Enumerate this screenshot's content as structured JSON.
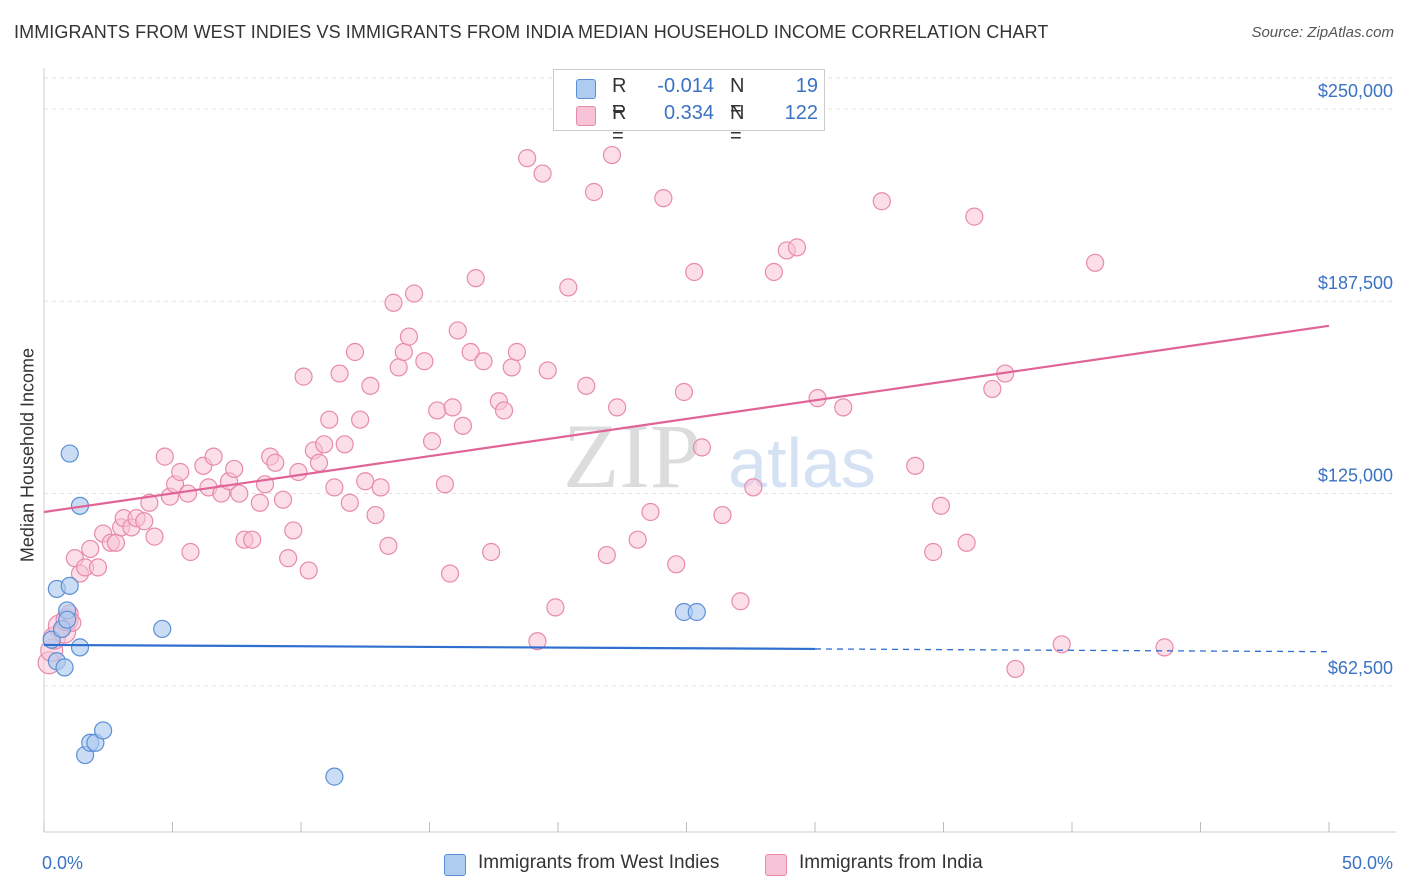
{
  "title": "IMMIGRANTS FROM WEST INDIES VS IMMIGRANTS FROM INDIA MEDIAN HOUSEHOLD INCOME CORRELATION CHART",
  "source": "Source: ZipAtlas.com",
  "watermark": {
    "zip": "ZIP",
    "atlas": "atlas"
  },
  "legend": {
    "rows": [
      {
        "r_label": "R =",
        "r_value": "-0.014",
        "n_label": "N =",
        "n_value": "19"
      },
      {
        "r_label": "R =",
        "r_value": "0.334",
        "n_label": "N =",
        "n_value": "122"
      }
    ]
  },
  "bottom_legend": {
    "west_indies": "Immigrants from West Indies",
    "india": "Immigrants from India"
  },
  "colors": {
    "west_indies_fill": "#aecbf0",
    "west_indies_stroke": "#5b8fd6",
    "west_indies_line": "#2f6fcf",
    "india_fill": "#f7c3d6",
    "india_stroke": "#e88aac",
    "india_line": "#e06496",
    "tick_label": "#3a72c4"
  },
  "chart_data": {
    "type": "scatter",
    "title": "IMMIGRANTS FROM WEST INDIES VS IMMIGRANTS FROM INDIA MEDIAN HOUSEHOLD INCOME CORRELATION CHART",
    "xlabel": "",
    "ylabel": "Median Household Income",
    "xlim": [
      0,
      50
    ],
    "ylim": [
      15000,
      262000
    ],
    "x_tick_labels": [
      "0.0%",
      "50.0%"
    ],
    "y_ticks": [
      62500,
      125000,
      187500,
      250000
    ],
    "y_tick_labels": [
      "$62,500",
      "$125,000",
      "$187,500",
      "$250,000"
    ],
    "grid": true,
    "legend_position": "top-center",
    "series": [
      {
        "name": "Immigrants from West Indies",
        "r": -0.014,
        "n": 19,
        "trend": {
          "x0": 0,
          "y0": 75800,
          "x1": 30,
          "y1": 74500,
          "dash_to_x": 50,
          "dash_to_y": 73600
        },
        "points": [
          [
            0.3,
            77500
          ],
          [
            0.5,
            70500
          ],
          [
            0.7,
            81000
          ],
          [
            0.8,
            68500
          ],
          [
            0.9,
            87000
          ],
          [
            0.9,
            84000
          ],
          [
            0.5,
            94000
          ],
          [
            1.0,
            95000
          ],
          [
            1.0,
            138000
          ],
          [
            1.4,
            121000
          ],
          [
            1.4,
            75000
          ],
          [
            1.6,
            40000
          ],
          [
            1.8,
            44000
          ],
          [
            2.0,
            44000
          ],
          [
            2.3,
            48000
          ],
          [
            4.6,
            81000
          ],
          [
            11.3,
            33000
          ],
          [
            24.9,
            86500
          ],
          [
            25.4,
            86500
          ]
        ]
      },
      {
        "name": "Immigrants from India",
        "r": 0.334,
        "n": 122,
        "trend": {
          "x0": 0,
          "y0": 119000,
          "x1": 50,
          "y1": 179500
        },
        "points": [
          [
            0.2,
            70000
          ],
          [
            0.3,
            74000
          ],
          [
            0.4,
            78000
          ],
          [
            0.6,
            82000
          ],
          [
            0.8,
            80000
          ],
          [
            0.9,
            84000
          ],
          [
            1.0,
            86000
          ],
          [
            1.1,
            83000
          ],
          [
            1.2,
            104000
          ],
          [
            1.4,
            99000
          ],
          [
            1.6,
            101000
          ],
          [
            1.8,
            107000
          ],
          [
            2.1,
            101000
          ],
          [
            2.3,
            112000
          ],
          [
            2.6,
            109000
          ],
          [
            2.8,
            109000
          ],
          [
            3.0,
            114000
          ],
          [
            3.1,
            117000
          ],
          [
            3.4,
            114000
          ],
          [
            3.6,
            117000
          ],
          [
            3.9,
            116000
          ],
          [
            4.3,
            111000
          ],
          [
            4.1,
            122000
          ],
          [
            4.7,
            137000
          ],
          [
            4.9,
            124000
          ],
          [
            5.1,
            128000
          ],
          [
            5.3,
            132000
          ],
          [
            5.6,
            125000
          ],
          [
            5.7,
            106000
          ],
          [
            6.2,
            134000
          ],
          [
            6.4,
            127000
          ],
          [
            6.6,
            137000
          ],
          [
            6.9,
            125000
          ],
          [
            7.2,
            129000
          ],
          [
            7.4,
            133000
          ],
          [
            7.6,
            125000
          ],
          [
            7.8,
            110000
          ],
          [
            8.1,
            110000
          ],
          [
            8.4,
            122000
          ],
          [
            8.6,
            128000
          ],
          [
            8.8,
            137000
          ],
          [
            9.0,
            135000
          ],
          [
            9.3,
            123000
          ],
          [
            9.5,
            104000
          ],
          [
            9.7,
            113000
          ],
          [
            9.9,
            132000
          ],
          [
            10.1,
            163000
          ],
          [
            10.3,
            100000
          ],
          [
            10.5,
            139000
          ],
          [
            10.7,
            135000
          ],
          [
            10.9,
            141000
          ],
          [
            11.1,
            149000
          ],
          [
            11.3,
            127000
          ],
          [
            11.5,
            164000
          ],
          [
            11.7,
            141000
          ],
          [
            11.9,
            122000
          ],
          [
            12.1,
            171000
          ],
          [
            12.3,
            149000
          ],
          [
            12.5,
            129000
          ],
          [
            12.7,
            160000
          ],
          [
            12.9,
            118000
          ],
          [
            13.1,
            127000
          ],
          [
            13.4,
            108000
          ],
          [
            13.6,
            187000
          ],
          [
            13.8,
            166000
          ],
          [
            14.0,
            171000
          ],
          [
            14.2,
            176000
          ],
          [
            14.4,
            190000
          ],
          [
            14.8,
            168000
          ],
          [
            15.1,
            142000
          ],
          [
            15.3,
            152000
          ],
          [
            15.6,
            128000
          ],
          [
            15.8,
            99000
          ],
          [
            15.9,
            153000
          ],
          [
            16.1,
            178000
          ],
          [
            16.3,
            147000
          ],
          [
            16.6,
            171000
          ],
          [
            16.8,
            195000
          ],
          [
            17.1,
            168000
          ],
          [
            17.4,
            106000
          ],
          [
            17.7,
            155000
          ],
          [
            17.9,
            152000
          ],
          [
            18.2,
            166000
          ],
          [
            18.4,
            171000
          ],
          [
            18.8,
            234000
          ],
          [
            19.2,
            77000
          ],
          [
            19.4,
            229000
          ],
          [
            19.6,
            165000
          ],
          [
            19.9,
            88000
          ],
          [
            20.4,
            192000
          ],
          [
            21.1,
            160000
          ],
          [
            21.4,
            223000
          ],
          [
            21.9,
            105000
          ],
          [
            22.1,
            235000
          ],
          [
            22.3,
            153000
          ],
          [
            23.1,
            110000
          ],
          [
            23.6,
            119000
          ],
          [
            24.1,
            221000
          ],
          [
            24.6,
            102000
          ],
          [
            24.9,
            158000
          ],
          [
            25.3,
            197000
          ],
          [
            25.6,
            140000
          ],
          [
            26.4,
            118000
          ],
          [
            27.1,
            90000
          ],
          [
            27.6,
            127000
          ],
          [
            28.4,
            197000
          ],
          [
            28.9,
            204000
          ],
          [
            29.3,
            205000
          ],
          [
            30.1,
            156000
          ],
          [
            31.1,
            153000
          ],
          [
            32.6,
            220000
          ],
          [
            33.9,
            134000
          ],
          [
            34.6,
            106000
          ],
          [
            34.9,
            121000
          ],
          [
            35.9,
            109000
          ],
          [
            36.2,
            215000
          ],
          [
            36.9,
            159000
          ],
          [
            37.4,
            164000
          ],
          [
            37.8,
            68000
          ],
          [
            39.6,
            76000
          ],
          [
            40.9,
            200000
          ],
          [
            43.6,
            75000
          ]
        ]
      }
    ]
  }
}
